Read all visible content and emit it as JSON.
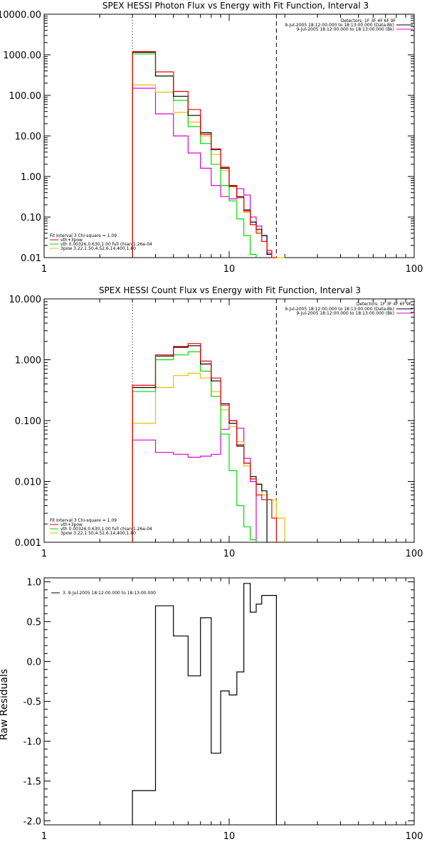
{
  "colors": {
    "data": "#000000",
    "vth+3pow": "#ff0000",
    "vth": "#00dd00",
    "3pow": "#e6c000",
    "bk": "#dd00dd",
    "residuals": "#000000",
    "background": "#ffffff"
  },
  "chart_data": [
    {
      "type": "line",
      "title": "SPEX HESSI Photon Flux vs Energy with Fit Function, Interval 3",
      "xscale": "log",
      "yscale": "log",
      "xlim": [
        1,
        100
      ],
      "ylim": [
        0.01,
        10000
      ],
      "xtick_labels": [
        "1",
        "10",
        "100"
      ],
      "ytick_labels": [
        "0.01",
        "0.10",
        "1.00",
        "10.00",
        "100.00",
        "1000.00",
        "10000.00"
      ],
      "vlines": {
        "dotted": 3,
        "dashed": 18
      },
      "bin_edges": [
        3,
        4,
        5,
        6,
        7,
        8,
        9,
        10,
        11,
        12,
        13,
        14,
        15,
        16,
        17,
        18,
        20,
        22
      ],
      "detector_header": "Detectors: 1F 3F 4F 6F 9F",
      "data_legend": [
        "9-Jul-2005 18:12:00.000 to 18:13:00.000 (Data-Bk)",
        "9-Jul-2005 18:12:00.000 to 18:13:00.000 (Bk)"
      ],
      "fit_legend": [
        "Fit Interval 3   Chi-square = 1.09",
        "vth+3pow",
        "vth 0.00326,0.630,1.00   full chian 1.26e-04",
        "3pow 3.22,1.50,4.52,6.14,400,1.80"
      ],
      "series": [
        {
          "name": "Data-Bk",
          "values": [
            1150,
            300,
            95,
            32,
            12,
            4.6,
            1.6,
            0.58,
            0.32,
            0.15,
            0.075,
            0.05,
            0.035,
            0.012
          ]
        },
        {
          "name": "vth+3pow",
          "values": [
            1200,
            380,
            125,
            45,
            11,
            4.8,
            1.7,
            0.6,
            0.3,
            0.14,
            0.065,
            0.04,
            0.025,
            0.015,
            0.01
          ]
        },
        {
          "name": "vth",
          "values": [
            1050,
            300,
            75,
            17,
            6.5,
            2.0,
            0.6,
            0.25,
            0.09,
            0.035,
            0.012
          ]
        },
        {
          "name": "3pow",
          "values": [
            180,
            120,
            38,
            22,
            10,
            3.5,
            1.4,
            0.55,
            0.3,
            0.13,
            0.065,
            0.045,
            0.025,
            0.015,
            0.01,
            0.006
          ]
        },
        {
          "name": "Bk",
          "values": [
            150,
            35,
            10,
            3.8,
            1.6,
            0.6,
            0.32,
            0.28,
            0.5,
            0.35,
            0.1,
            0.06,
            0.035,
            0.013
          ]
        }
      ]
    },
    {
      "type": "line",
      "title": "SPEX HESSI Count Flux vs Energy with Fit Function, Interval 3",
      "xscale": "log",
      "yscale": "log",
      "xlim": [
        1,
        100
      ],
      "ylim": [
        0.001,
        10
      ],
      "xtick_labels": [
        "1",
        "10",
        "100"
      ],
      "ytick_labels": [
        "0.001",
        "0.010",
        "0.100",
        "1.000",
        "10.000"
      ],
      "vlines": {
        "dotted": 3,
        "dashed": 18
      },
      "bin_edges": [
        3,
        4,
        5,
        6,
        7,
        8,
        9,
        10,
        11,
        12,
        13,
        14,
        15,
        16,
        17,
        18,
        20,
        22
      ],
      "detector_header": "Detectors: 1F 3F 4F 6F 9F",
      "data_legend": [
        "9-Jul-2005 18:12:00.000 to 18:13:00.000 (Data-Bk)",
        "9-Jul-2005 18:12:00.000 to 18:13:00.000 (Bk)"
      ],
      "fit_legend": [
        "Fit Interval 3   Chi-square = 1.09",
        "vth+3pow",
        "vth 0.00326,0.630,1.00   full chian 1.26e-04",
        "3pow 3.22,1.50,4.52,6.14,400,1.80"
      ],
      "series": [
        {
          "name": "Data-Bk",
          "values": [
            0.35,
            1.15,
            1.6,
            1.7,
            0.85,
            0.45,
            0.19,
            0.09,
            0.038,
            0.02,
            0.012,
            0.009,
            0.007
          ]
        },
        {
          "name": "vth+3pow",
          "values": [
            0.38,
            1.2,
            1.65,
            1.85,
            0.95,
            0.5,
            0.18,
            0.1,
            0.04,
            0.02,
            0.011,
            0.006,
            0.005,
            0.005,
            0.0025
          ]
        },
        {
          "name": "vth",
          "values": [
            0.3,
            1.0,
            1.2,
            1.35,
            0.65,
            0.25,
            0.06,
            0.015,
            0.004,
            0.0018,
            0.0011
          ]
        },
        {
          "name": "3pow",
          "values": [
            0.09,
            0.35,
            0.55,
            0.6,
            0.5,
            0.3,
            0.15,
            0.08,
            0.045,
            0.018,
            0.011,
            0.009,
            0.006,
            0.005,
            0.005,
            0.0025
          ]
        },
        {
          "name": "Bk",
          "values": [
            0.048,
            0.03,
            0.028,
            0.025,
            0.026,
            0.028,
            0.072,
            0.1,
            0.075,
            0.024,
            0.01
          ]
        }
      ]
    },
    {
      "type": "line",
      "title": "",
      "ylabel": "Raw Residuals",
      "xscale": "log",
      "yscale": "linear",
      "xlim": [
        1,
        100
      ],
      "ylim": [
        -2.05,
        1.05
      ],
      "xtick_labels": [
        "1",
        "10",
        "100"
      ],
      "yticks": [
        1.0,
        0.5,
        0.0,
        -0.5,
        -1.0,
        -1.5,
        -2.0
      ],
      "ytick_labels": [
        "1.0",
        "0.5",
        "0.0",
        "-0.5",
        "-1.0",
        "-1.5",
        "-2.0"
      ],
      "bin_edges": [
        3,
        4,
        5,
        6,
        7,
        8,
        9,
        10,
        11,
        12,
        13,
        14,
        15,
        16,
        17,
        18
      ],
      "legend": [
        "3.  9-Jul-2005 18:12:00.000 to 18:13:00.000"
      ],
      "series": [
        {
          "name": "3.  9-Jul-2005 18:12:00.000 to 18:13:00.000",
          "values": [
            -1.62,
            0.7,
            0.32,
            -0.18,
            0.55,
            -1.15,
            -0.37,
            -0.42,
            -0.13,
            0.98,
            0.62,
            0.72,
            0.83,
            0.83,
            0.83
          ]
        }
      ]
    }
  ]
}
